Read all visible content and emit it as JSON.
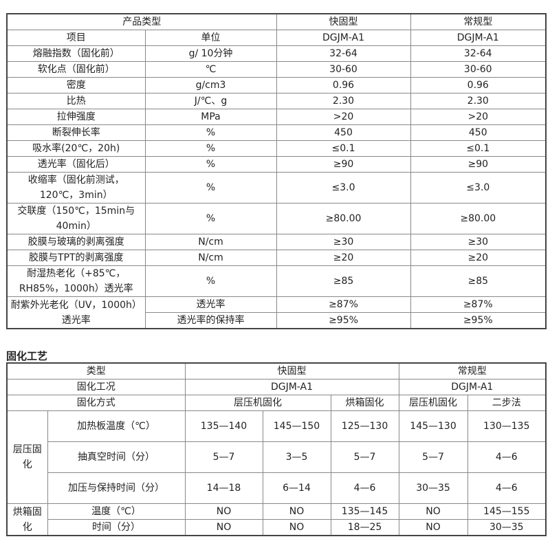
{
  "properties_table": {
    "header": [
      "产品类型",
      "快固型",
      "常规型"
    ],
    "subheader": [
      "项目",
      "单位",
      "DGJM-A1",
      "DGJM-A1"
    ],
    "rows": [
      [
        "熔融指数（固化前）",
        "g/ 10分钟",
        "32-64",
        "32-64"
      ],
      [
        "软化点（固化前）",
        "℃",
        "30-60",
        "30-60"
      ],
      [
        "密度",
        "g/cm3",
        "0.96",
        "0.96"
      ],
      [
        "比热",
        "J/℃、g",
        "2.30",
        "2.30"
      ],
      [
        "拉伸强度",
        "MPa",
        ">20",
        ">20"
      ],
      [
        "断裂伸长率",
        "%",
        "450",
        "450"
      ],
      [
        "吸水率(20℃，20h)",
        "%",
        "≤0.1",
        "≤0.1"
      ],
      [
        "透光率（固化后）",
        "%",
        "≥90",
        "≥90"
      ],
      [
        "收缩率（固化前测试，120℃，3min）",
        "%",
        "≤3.0",
        "≤3.0"
      ],
      [
        "交联度（150℃，15min与40min）",
        "%",
        "≥80.00",
        "≥80.00"
      ],
      [
        "胶膜与玻璃的剥离强度",
        "N/cm",
        "≥30",
        "≥30"
      ],
      [
        "胶膜与TPT的剥离强度",
        "N/cm",
        "≥20",
        "≥20"
      ],
      [
        "耐湿热老化（+85℃，RH85%，1000h）透光率",
        "%",
        "≥85",
        "≥85"
      ]
    ],
    "uv_row": {
      "label": "耐紫外光老化（UV，1000h）透光率",
      "sub": [
        [
          "透光率",
          "≥87%",
          "≥87%"
        ],
        [
          "透光率的保持率",
          "≥95%",
          "≥95%"
        ]
      ]
    }
  },
  "curing": {
    "title": "固化工艺",
    "type_label": "类型",
    "fast": "快固型",
    "normal": "常规型",
    "condition_label": "固化工况",
    "model_fast": "DGJM-A1",
    "model_normal": "DGJM-A1",
    "method_label": "固化方式",
    "methods": [
      "层压机固化",
      "烘箱固化",
      "层压机固化",
      "二步法"
    ],
    "laminate_group": "层压固化",
    "laminate_rows": [
      {
        "label": "加热板温度（℃）",
        "values": [
          "135—140",
          "145—150",
          "125—130",
          "145—130",
          "130—135"
        ]
      },
      {
        "label": "抽真空时间（分）",
        "values": [
          "5—7",
          "3—5",
          "5—7",
          "5—7",
          "4—6"
        ]
      },
      {
        "label": "加压与保持时间（分）",
        "values": [
          "14—18",
          "6—14",
          "4—6",
          "30—35",
          "4—6"
        ]
      }
    ],
    "oven_group": "烘箱固化",
    "oven_rows": [
      {
        "label": "温度（℃）",
        "values": [
          "NO",
          "NO",
          "135—145",
          "NO",
          "145—155"
        ]
      },
      {
        "label": "时间（分）",
        "values": [
          "NO",
          "NO",
          "18—25",
          "NO",
          "30—35"
        ]
      }
    ]
  }
}
